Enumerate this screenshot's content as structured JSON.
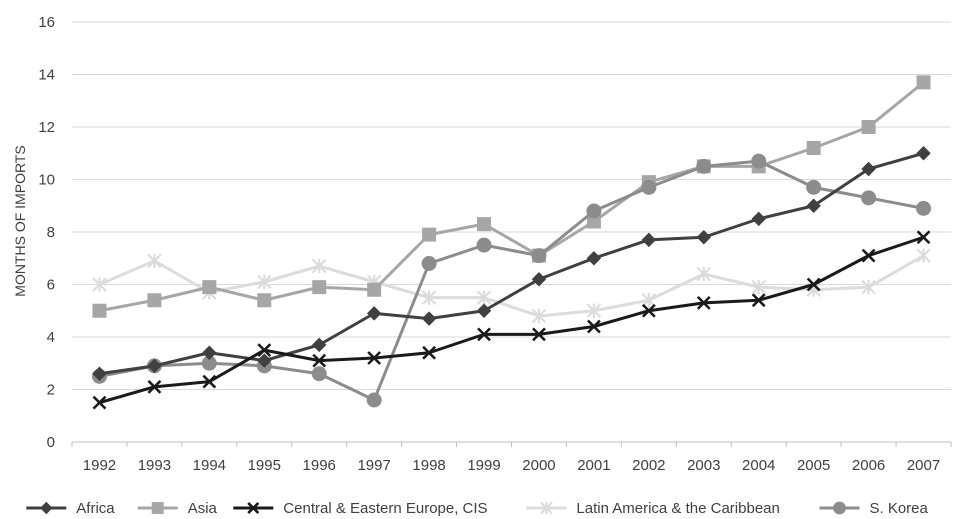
{
  "chart_data": {
    "type": "line",
    "title": "",
    "xlabel": "",
    "ylabel": "MONTHS OF IMPORTS",
    "ylim": [
      0,
      16
    ],
    "yticks": [
      0,
      2,
      4,
      6,
      8,
      10,
      12,
      14,
      16
    ],
    "grid": true,
    "legend_position": "bottom",
    "categories": [
      "1992",
      "1993",
      "1994",
      "1995",
      "1996",
      "1997",
      "1998",
      "1999",
      "2000",
      "2001",
      "2002",
      "2003",
      "2004",
      "2005",
      "2006",
      "2007"
    ],
    "series": [
      {
        "name": "Africa",
        "color": "#404040",
        "marker": "diamond",
        "values": [
          2.6,
          2.9,
          3.4,
          3.1,
          3.7,
          4.9,
          4.7,
          5.0,
          6.2,
          7.0,
          7.7,
          7.8,
          8.5,
          9.0,
          10.4,
          11.0
        ]
      },
      {
        "name": "Asia",
        "color": "#a6a6a6",
        "marker": "square",
        "values": [
          5.0,
          5.4,
          5.9,
          5.4,
          5.9,
          5.8,
          7.9,
          8.3,
          7.1,
          8.4,
          9.9,
          10.5,
          10.5,
          11.2,
          12.0,
          13.7
        ]
      },
      {
        "name": "Central & Eastern Europe, CIS",
        "color": "#1a1a1a",
        "marker": "x",
        "values": [
          1.5,
          2.1,
          2.3,
          3.5,
          3.1,
          3.2,
          3.4,
          4.1,
          4.1,
          4.4,
          5.0,
          5.3,
          5.4,
          6.0,
          7.1,
          7.8
        ]
      },
      {
        "name": "Latin America & the Caribbean",
        "color": "#dcdcdc",
        "marker": "star",
        "values": [
          6.0,
          6.9,
          5.7,
          6.1,
          6.7,
          6.1,
          5.5,
          5.5,
          4.8,
          5.0,
          5.4,
          6.4,
          5.9,
          5.8,
          5.9,
          7.1
        ]
      },
      {
        "name": "S. Korea",
        "color": "#8c8c8c",
        "marker": "circle",
        "values": [
          2.5,
          2.9,
          3.0,
          2.9,
          2.6,
          1.6,
          6.8,
          7.5,
          7.1,
          8.8,
          9.7,
          10.5,
          10.7,
          9.7,
          9.3,
          8.9
        ]
      }
    ]
  }
}
